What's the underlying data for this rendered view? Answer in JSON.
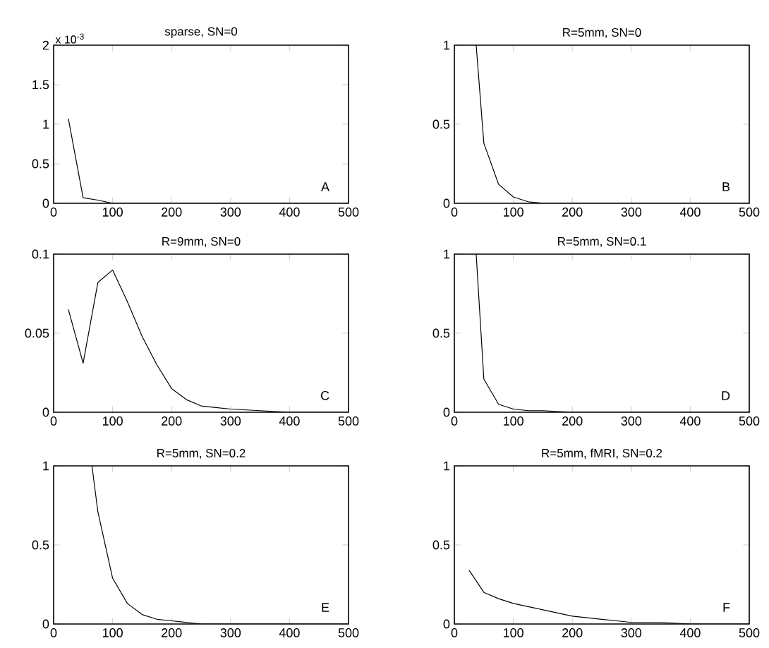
{
  "chart_data": [
    {
      "type": "line",
      "title": "sparse, SN=0",
      "color": "#000000",
      "x": [
        25,
        50,
        75,
        100,
        500
      ],
      "values": [
        1.07,
        0.07,
        0.04,
        0,
        0
      ],
      "xlim": [
        0,
        500
      ],
      "ylim": [
        0,
        2
      ],
      "xticks": [
        0,
        100,
        200,
        300,
        400,
        500
      ],
      "yticks": [
        0,
        0.5,
        1,
        1.5,
        2
      ],
      "annotations": [
        "x 10$^{-3}$",
        "A"
      ]
    },
    {
      "type": "line",
      "title": "R=5mm, SN=0",
      "color": "#000000",
      "x": [
        37,
        50,
        75,
        100,
        125,
        150,
        500
      ],
      "values": [
        1,
        0.38,
        0.12,
        0.04,
        0.01,
        0,
        0
      ],
      "xlim": [
        0,
        500
      ],
      "ylim": [
        0,
        1
      ],
      "xticks": [
        0,
        100,
        200,
        300,
        400,
        500
      ],
      "yticks": [
        0,
        0.5,
        1
      ],
      "annotations": [
        "B"
      ]
    },
    {
      "type": "line",
      "title": "R=9mm, SN=0",
      "color": "#000000",
      "x": [
        25,
        50,
        75,
        100,
        125,
        150,
        175,
        200,
        225,
        250,
        275,
        300,
        350,
        400,
        500
      ],
      "values": [
        0.065,
        0.031,
        0.082,
        0.09,
        0.07,
        0.048,
        0.03,
        0.015,
        0.008,
        0.004,
        0.003,
        0.002,
        0.001,
        0,
        0
      ],
      "xlim": [
        0,
        500
      ],
      "ylim": [
        0,
        0.1
      ],
      "xticks": [
        0,
        100,
        200,
        300,
        400,
        500
      ],
      "yticks": [
        0,
        0.05,
        0.1
      ],
      "annotations": [
        "C"
      ]
    },
    {
      "type": "line",
      "title": "R=5mm, SN=0.1",
      "color": "#000000",
      "x": [
        37,
        50,
        75,
        100,
        125,
        150,
        200,
        500
      ],
      "values": [
        1,
        0.21,
        0.05,
        0.02,
        0.01,
        0.01,
        0,
        0
      ],
      "xlim": [
        0,
        500
      ],
      "ylim": [
        0,
        1
      ],
      "xticks": [
        0,
        100,
        200,
        300,
        400,
        500
      ],
      "yticks": [
        0,
        0.5,
        1
      ],
      "annotations": [
        "D"
      ]
    },
    {
      "type": "line",
      "title": "R=5mm, SN=0.2",
      "color": "#000000",
      "x": [
        65,
        75,
        100,
        125,
        150,
        175,
        200,
        225,
        250,
        500
      ],
      "values": [
        1,
        0.71,
        0.29,
        0.13,
        0.06,
        0.03,
        0.02,
        0.01,
        0,
        0
      ],
      "xlim": [
        0,
        500
      ],
      "ylim": [
        0,
        1
      ],
      "xticks": [
        0,
        100,
        200,
        300,
        400,
        500
      ],
      "yticks": [
        0,
        0.5,
        1
      ],
      "annotations": [
        "E"
      ]
    },
    {
      "type": "line",
      "title": "R=5mm, fMRI, SN=0.2",
      "color": "#000000",
      "x": [
        25,
        50,
        75,
        100,
        125,
        150,
        175,
        200,
        225,
        250,
        275,
        300,
        350,
        400,
        500
      ],
      "values": [
        0.34,
        0.2,
        0.16,
        0.13,
        0.11,
        0.09,
        0.07,
        0.05,
        0.04,
        0.03,
        0.02,
        0.01,
        0.01,
        0,
        0
      ],
      "xlim": [
        0,
        500
      ],
      "ylim": [
        0,
        1
      ],
      "xticks": [
        0,
        100,
        200,
        300,
        400,
        500
      ],
      "yticks": [
        0,
        0.5,
        1
      ],
      "annotations": [
        "F"
      ]
    }
  ]
}
